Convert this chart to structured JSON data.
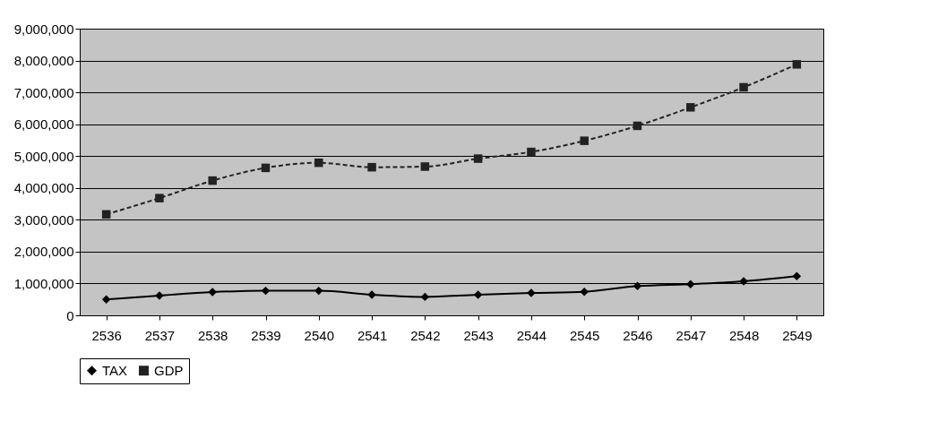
{
  "chart_data": {
    "type": "line",
    "categories": [
      "2536",
      "2537",
      "2538",
      "2539",
      "2540",
      "2541",
      "2542",
      "2543",
      "2544",
      "2545",
      "2546",
      "2547",
      "2548",
      "2549"
    ],
    "series": [
      {
        "name": "TAX",
        "color": "#000000",
        "marker": "diamond",
        "line_style": "solid",
        "values": [
          500000,
          620000,
          730000,
          770000,
          770000,
          650000,
          580000,
          650000,
          700000,
          740000,
          920000,
          980000,
          1070000,
          1230000
        ]
      },
      {
        "name": "GDP",
        "color": "#222222",
        "marker": "square",
        "line_style": "dashed",
        "values": [
          3170000,
          3680000,
          4230000,
          4630000,
          4790000,
          4650000,
          4670000,
          4920000,
          5130000,
          5480000,
          5950000,
          6530000,
          7160000,
          7880000
        ]
      }
    ],
    "ylim": [
      0,
      9000000
    ],
    "yticks": [
      {
        "value": 0,
        "label": "0"
      },
      {
        "value": 1000000,
        "label": "1,000,000"
      },
      {
        "value": 2000000,
        "label": "2,000,000"
      },
      {
        "value": 3000000,
        "label": "3,000,000"
      },
      {
        "value": 4000000,
        "label": "4,000,000"
      },
      {
        "value": 5000000,
        "label": "5,000,000"
      },
      {
        "value": 6000000,
        "label": "6,000,000"
      },
      {
        "value": 7000000,
        "label": "7,000,000"
      },
      {
        "value": 8000000,
        "label": "8,000,000"
      },
      {
        "value": 9000000,
        "label": "9,000,000"
      }
    ],
    "grid": "y",
    "legend": "bottom"
  }
}
